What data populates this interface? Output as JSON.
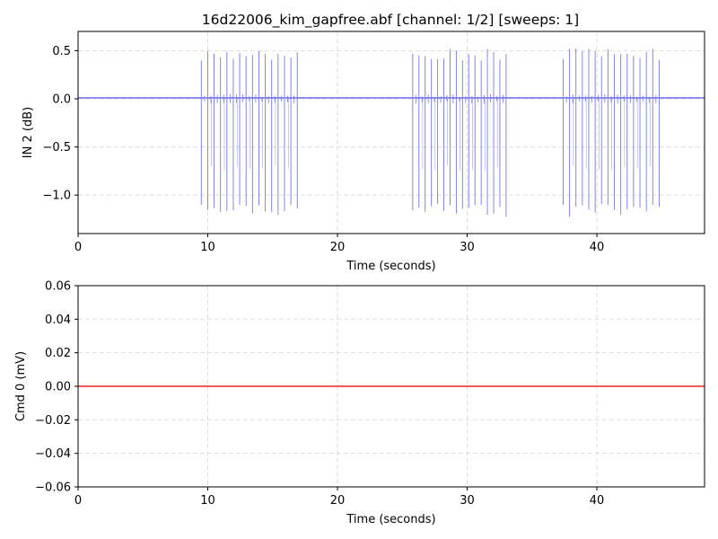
{
  "chart_data": {
    "title": "16d22006_kim_gapfree.abf [channel: 1/2] [sweeps: 1]",
    "subplots": [
      {
        "type": "line",
        "xlabel": "Time (seconds)",
        "ylabel": "IN 2 (dB)",
        "xlim": [
          0,
          48.3
        ],
        "ylim": [
          -1.4,
          0.7
        ],
        "xticks": [
          0,
          10,
          20,
          30,
          40
        ],
        "yticks": [
          -1.0,
          -0.5,
          0.0,
          0.5
        ],
        "ytick_labels": [
          "−1.0",
          "−0.5",
          "0.0",
          "0.5"
        ],
        "grid": true,
        "series": [
          {
            "color": "#7777ee",
            "baseline": 0.01,
            "bursts": [
              {
                "start": 9.5,
                "end": 16.9,
                "spike_count": 16
              },
              {
                "start": 25.8,
                "end": 33.0,
                "spike_count": 16
              },
              {
                "start": 37.4,
                "end": 44.8,
                "spike_count": 16
              }
            ],
            "spike_peak_range": [
              0.4,
              0.53
            ],
            "spike_trough_range": [
              -1.23,
              -1.09
            ],
            "mid_spike_trough": -0.72
          }
        ]
      },
      {
        "type": "line",
        "xlabel": "Time (seconds)",
        "ylabel": "Cmd 0 (mV)",
        "xlim": [
          0,
          48.3
        ],
        "ylim": [
          -0.06,
          0.06
        ],
        "xticks": [
          0,
          10,
          20,
          30,
          40
        ],
        "yticks": [
          -0.06,
          -0.04,
          -0.02,
          0.0,
          0.02,
          0.04,
          0.06
        ],
        "ytick_labels": [
          "−0.06",
          "−0.04",
          "−0.02",
          "0.00",
          "0.02",
          "0.04",
          "0.06"
        ],
        "grid": true,
        "series": [
          {
            "color": "#ee2222",
            "x": [
              0,
              48.3
            ],
            "y": [
              0.0,
              0.0
            ]
          }
        ]
      }
    ]
  }
}
